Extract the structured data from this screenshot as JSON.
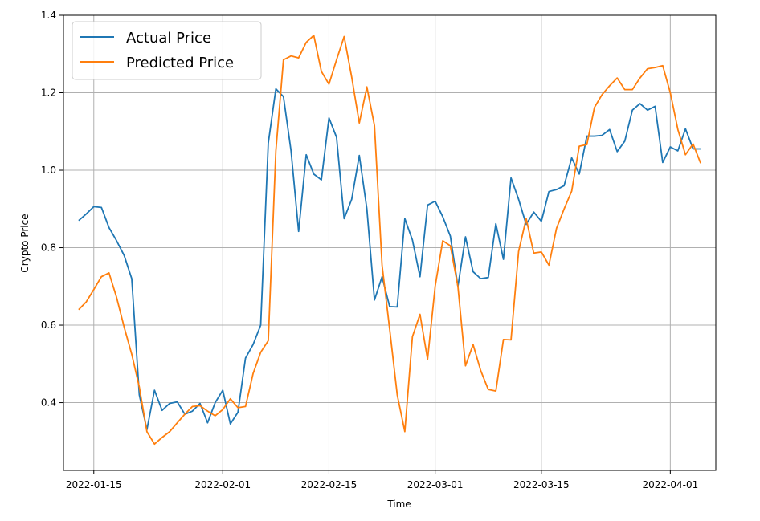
{
  "chart_data": {
    "type": "line",
    "title": "",
    "xlabel": "Time",
    "ylabel": "Crypto Price",
    "xlim": [
      "2022-01-11",
      "2022-04-07"
    ],
    "ylim": [
      0.225,
      1.4
    ],
    "x_ticks": [
      "2022-01-15",
      "2022-02-01",
      "2022-02-15",
      "2022-03-01",
      "2022-03-15",
      "2022-04-01"
    ],
    "y_ticks": [
      0.4,
      0.6,
      0.8,
      1.0,
      1.2,
      1.4
    ],
    "y_tick_labels": [
      "0.4",
      "0.6",
      "0.8",
      "1.0",
      "1.2",
      "1.4"
    ],
    "grid": true,
    "legend": "top-left",
    "start_date": "2022-01-13",
    "series": [
      {
        "name": "Actual Price",
        "color": "#1f77b4",
        "values": [
          0.87,
          0.887,
          0.906,
          0.904,
          0.852,
          0.818,
          0.78,
          0.72,
          0.42,
          0.33,
          0.432,
          0.38,
          0.398,
          0.402,
          0.37,
          0.378,
          0.398,
          0.348,
          0.4,
          0.432,
          0.345,
          0.375,
          0.515,
          0.55,
          0.6,
          1.07,
          1.21,
          1.19,
          1.05,
          0.842,
          1.04,
          0.99,
          0.975,
          1.135,
          1.085,
          0.875,
          0.925,
          1.038,
          0.9,
          0.665,
          0.725,
          0.648,
          0.647,
          0.875,
          0.82,
          0.725,
          0.91,
          0.92,
          0.88,
          0.83,
          0.7,
          0.828,
          0.738,
          0.72,
          0.723,
          0.862,
          0.77,
          0.98,
          0.925,
          0.86,
          0.892,
          0.868,
          0.945,
          0.95,
          0.96,
          1.032,
          0.99,
          1.088,
          1.088,
          1.09,
          1.105,
          1.048,
          1.075,
          1.155,
          1.172,
          1.155,
          1.165,
          1.02,
          1.06,
          1.05,
          1.107,
          1.055,
          1.055
        ]
      },
      {
        "name": "Predicted Price",
        "color": "#ff7f0e",
        "values": [
          0.64,
          0.66,
          0.692,
          0.725,
          0.735,
          0.672,
          0.595,
          0.525,
          0.44,
          0.325,
          0.293,
          0.31,
          0.325,
          0.348,
          0.37,
          0.39,
          0.392,
          0.378,
          0.366,
          0.382,
          0.41,
          0.387,
          0.39,
          0.475,
          0.53,
          0.56,
          1.05,
          1.285,
          1.295,
          1.29,
          1.33,
          1.348,
          1.255,
          1.222,
          1.285,
          1.345,
          1.24,
          1.122,
          1.215,
          1.115,
          0.755,
          0.59,
          0.42,
          0.325,
          0.57,
          0.628,
          0.512,
          0.7,
          0.818,
          0.805,
          0.7,
          0.495,
          0.55,
          0.483,
          0.434,
          0.43,
          0.563,
          0.562,
          0.79,
          0.875,
          0.786,
          0.789,
          0.755,
          0.85,
          0.9,
          0.946,
          1.062,
          1.066,
          1.162,
          1.195,
          1.218,
          1.238,
          1.208,
          1.208,
          1.238,
          1.262,
          1.265,
          1.27,
          1.2,
          1.105,
          1.04,
          1.068,
          1.018
        ]
      }
    ]
  }
}
